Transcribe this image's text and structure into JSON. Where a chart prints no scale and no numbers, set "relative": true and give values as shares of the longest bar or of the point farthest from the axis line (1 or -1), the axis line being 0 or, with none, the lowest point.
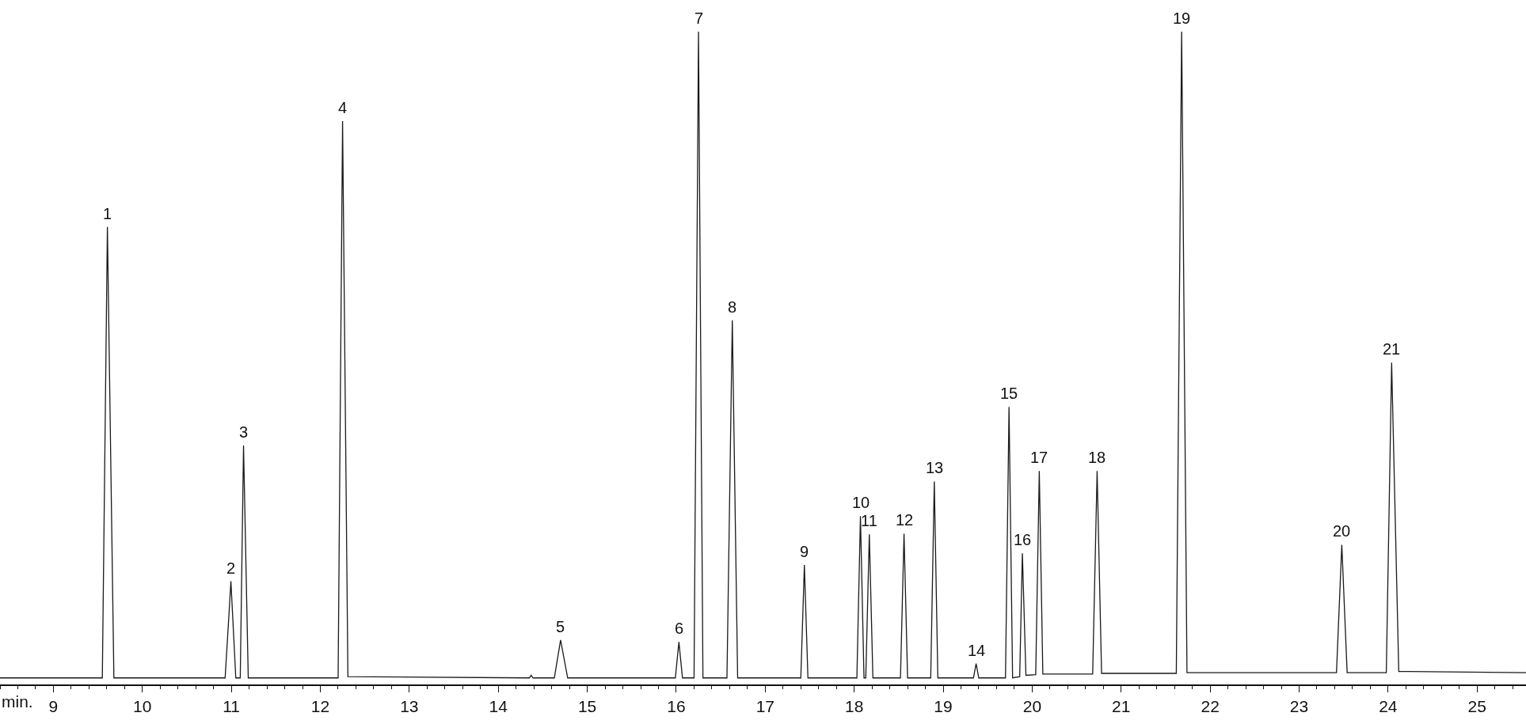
{
  "chart_data": {
    "type": "line",
    "relative": true,
    "xlabel": "min.",
    "xlim": [
      8.4,
      25.55
    ],
    "xticks": [
      9,
      10,
      11,
      12,
      13,
      14,
      15,
      16,
      17,
      18,
      19,
      20,
      21,
      22,
      23,
      24,
      25
    ],
    "marker": "none",
    "line_style": "solid",
    "series": [
      {
        "color": "#1a1a1a",
        "x": [
          8.4,
          9.55,
          9.607,
          9.68,
          10.93,
          10.97,
          10.995,
          11.05,
          11.1,
          11.137,
          11.19,
          12.2,
          12.25,
          12.31,
          14.35,
          14.37,
          14.39,
          14.63,
          14.7,
          14.78,
          15.99,
          16.03,
          16.07,
          16.2,
          16.25,
          16.3,
          16.57,
          16.63,
          16.69,
          17.4,
          17.44,
          17.48,
          18.03,
          18.07,
          18.11,
          18.13,
          18.17,
          18.21,
          18.52,
          18.56,
          18.6,
          18.86,
          18.9,
          18.94,
          19.34,
          19.37,
          19.4,
          19.7,
          19.74,
          19.78,
          19.86,
          19.89,
          19.93,
          20.04,
          20.08,
          20.12,
          20.68,
          20.73,
          20.78,
          21.62,
          21.68,
          21.74,
          23.42,
          23.48,
          23.54,
          23.98,
          24.04,
          24.12,
          25.55
        ],
        "values": [
          0.01,
          0.01,
          0.701,
          0.01,
          0.01,
          0.1,
          0.158,
          0.01,
          0.01,
          0.366,
          0.01,
          0.01,
          0.863,
          0.012,
          0.01,
          0.014,
          0.01,
          0.01,
          0.068,
          0.01,
          0.01,
          0.065,
          0.01,
          0.01,
          1,
          0.01,
          0.01,
          0.558,
          0.01,
          0.01,
          0.183,
          0.01,
          0.01,
          0.258,
          0.01,
          0.01,
          0.23,
          0.01,
          0.01,
          0.231,
          0.01,
          0.01,
          0.311,
          0.01,
          0.01,
          0.032,
          0.01,
          0.01,
          0.425,
          0.01,
          0.012,
          0.201,
          0.014,
          0.015,
          0.327,
          0.016,
          0.016,
          0.327,
          0.017,
          0.017,
          1,
          0.018,
          0.018,
          0.214,
          0.018,
          0.018,
          0.493,
          0.02,
          0.018
        ]
      }
    ],
    "annotations": [
      {
        "text": "1",
        "x": 9.607,
        "y": 0.701
      },
      {
        "text": "2",
        "x": 10.995,
        "y": 0.158
      },
      {
        "text": "3",
        "x": 11.137,
        "y": 0.366
      },
      {
        "text": "4",
        "x": 12.25,
        "y": 0.863
      },
      {
        "text": "5",
        "x": 14.7,
        "y": 0.068
      },
      {
        "text": "6",
        "x": 16.03,
        "y": 0.065
      },
      {
        "text": "7",
        "x": 16.25,
        "y": 1
      },
      {
        "text": "8",
        "x": 16.63,
        "y": 0.558
      },
      {
        "text": "9",
        "x": 17.44,
        "y": 0.183
      },
      {
        "text": "10",
        "x": 18.07,
        "y": 0.258
      },
      {
        "text": "11",
        "x": 18.17,
        "y": 0.23
      },
      {
        "text": "12",
        "x": 18.56,
        "y": 0.231
      },
      {
        "text": "13",
        "x": 18.9,
        "y": 0.311
      },
      {
        "text": "14",
        "x": 19.37,
        "y": 0.032
      },
      {
        "text": "15",
        "x": 19.74,
        "y": 0.425
      },
      {
        "text": "16",
        "x": 19.89,
        "y": 0.201
      },
      {
        "text": "17",
        "x": 20.08,
        "y": 0.327
      },
      {
        "text": "18",
        "x": 20.73,
        "y": 0.327
      },
      {
        "text": "19",
        "x": 21.68,
        "y": 1
      },
      {
        "text": "20",
        "x": 23.48,
        "y": 0.214
      },
      {
        "text": "21",
        "x": 24.04,
        "y": 0.493
      }
    ]
  }
}
